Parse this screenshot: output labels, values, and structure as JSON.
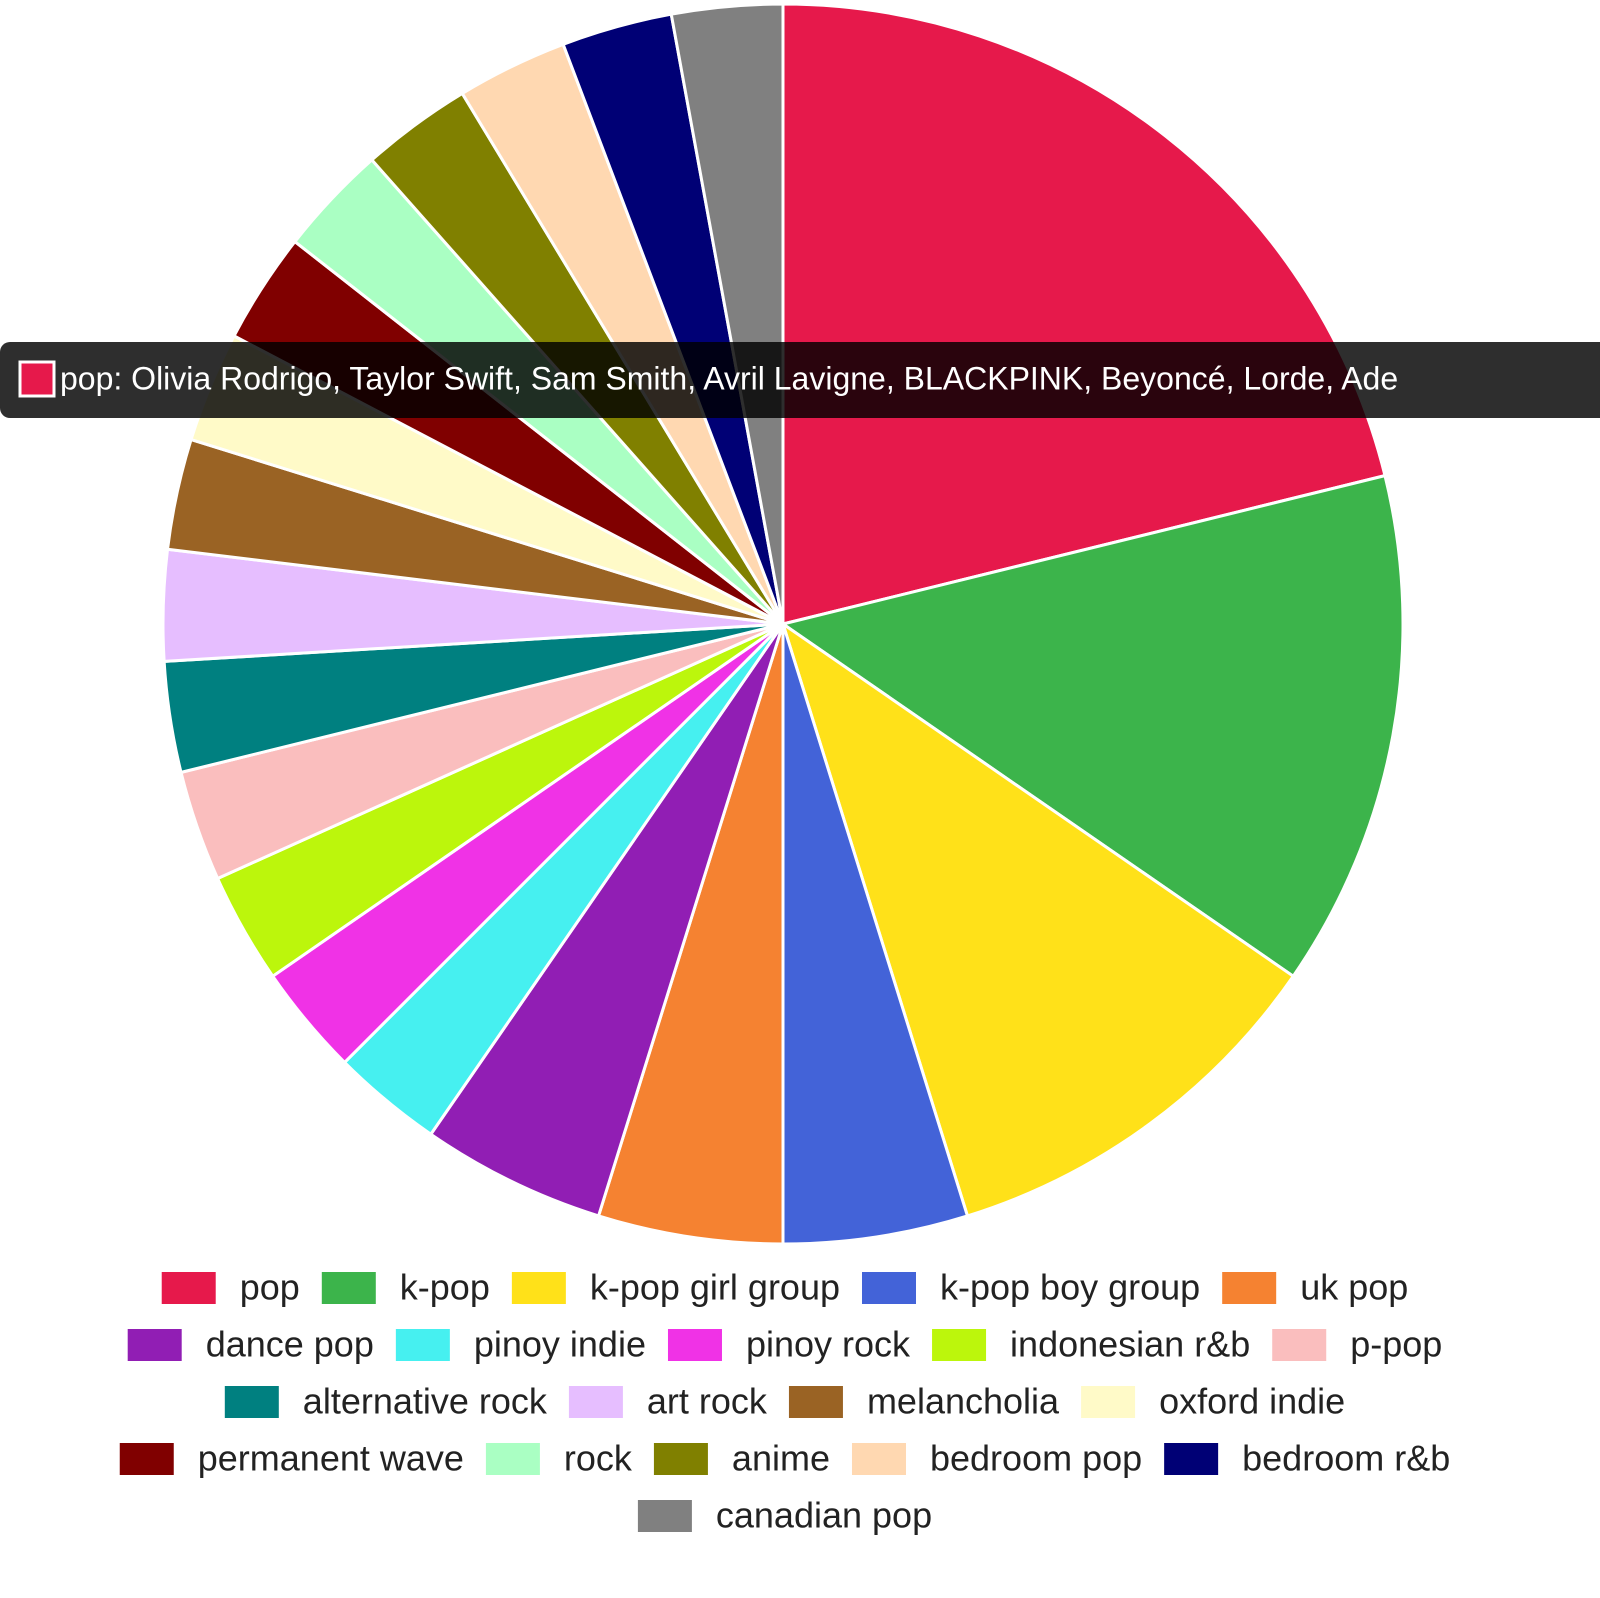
{
  "chart_data": {
    "type": "pie",
    "categories": [
      "pop",
      "k-pop",
      "k-pop girl group",
      "k-pop boy group",
      "uk pop",
      "dance pop",
      "pinoy indie",
      "pinoy rock",
      "indonesian r&b",
      "p-pop",
      "alternative rock",
      "art rock",
      "melancholia",
      "oxford indie",
      "permanent wave",
      "rock",
      "anime",
      "bedroom pop",
      "bedroom r&b",
      "canadian pop"
    ],
    "values": [
      22,
      14,
      11,
      5,
      5,
      5,
      3,
      3,
      3,
      3,
      3,
      3,
      3,
      3,
      3,
      3,
      3,
      3,
      3,
      3
    ],
    "colors": [
      "#e6194b",
      "#3cb44b",
      "#ffe119",
      "#4363d8",
      "#f58231",
      "#911eb4",
      "#46f0f0",
      "#f032e6",
      "#bcf60c",
      "#fabebe",
      "#008080",
      "#e6beff",
      "#9a6324",
      "#fffac8",
      "#800000",
      "#aaffc3",
      "#808000",
      "#ffd8b1",
      "#000075",
      "#808080"
    ],
    "tooltip": "pop: Olivia Rodrigo, Taylor Swift, Sam Smith, Avril Lavigne, BLACKPINK, Beyoncé, Lorde, Ade"
  }
}
